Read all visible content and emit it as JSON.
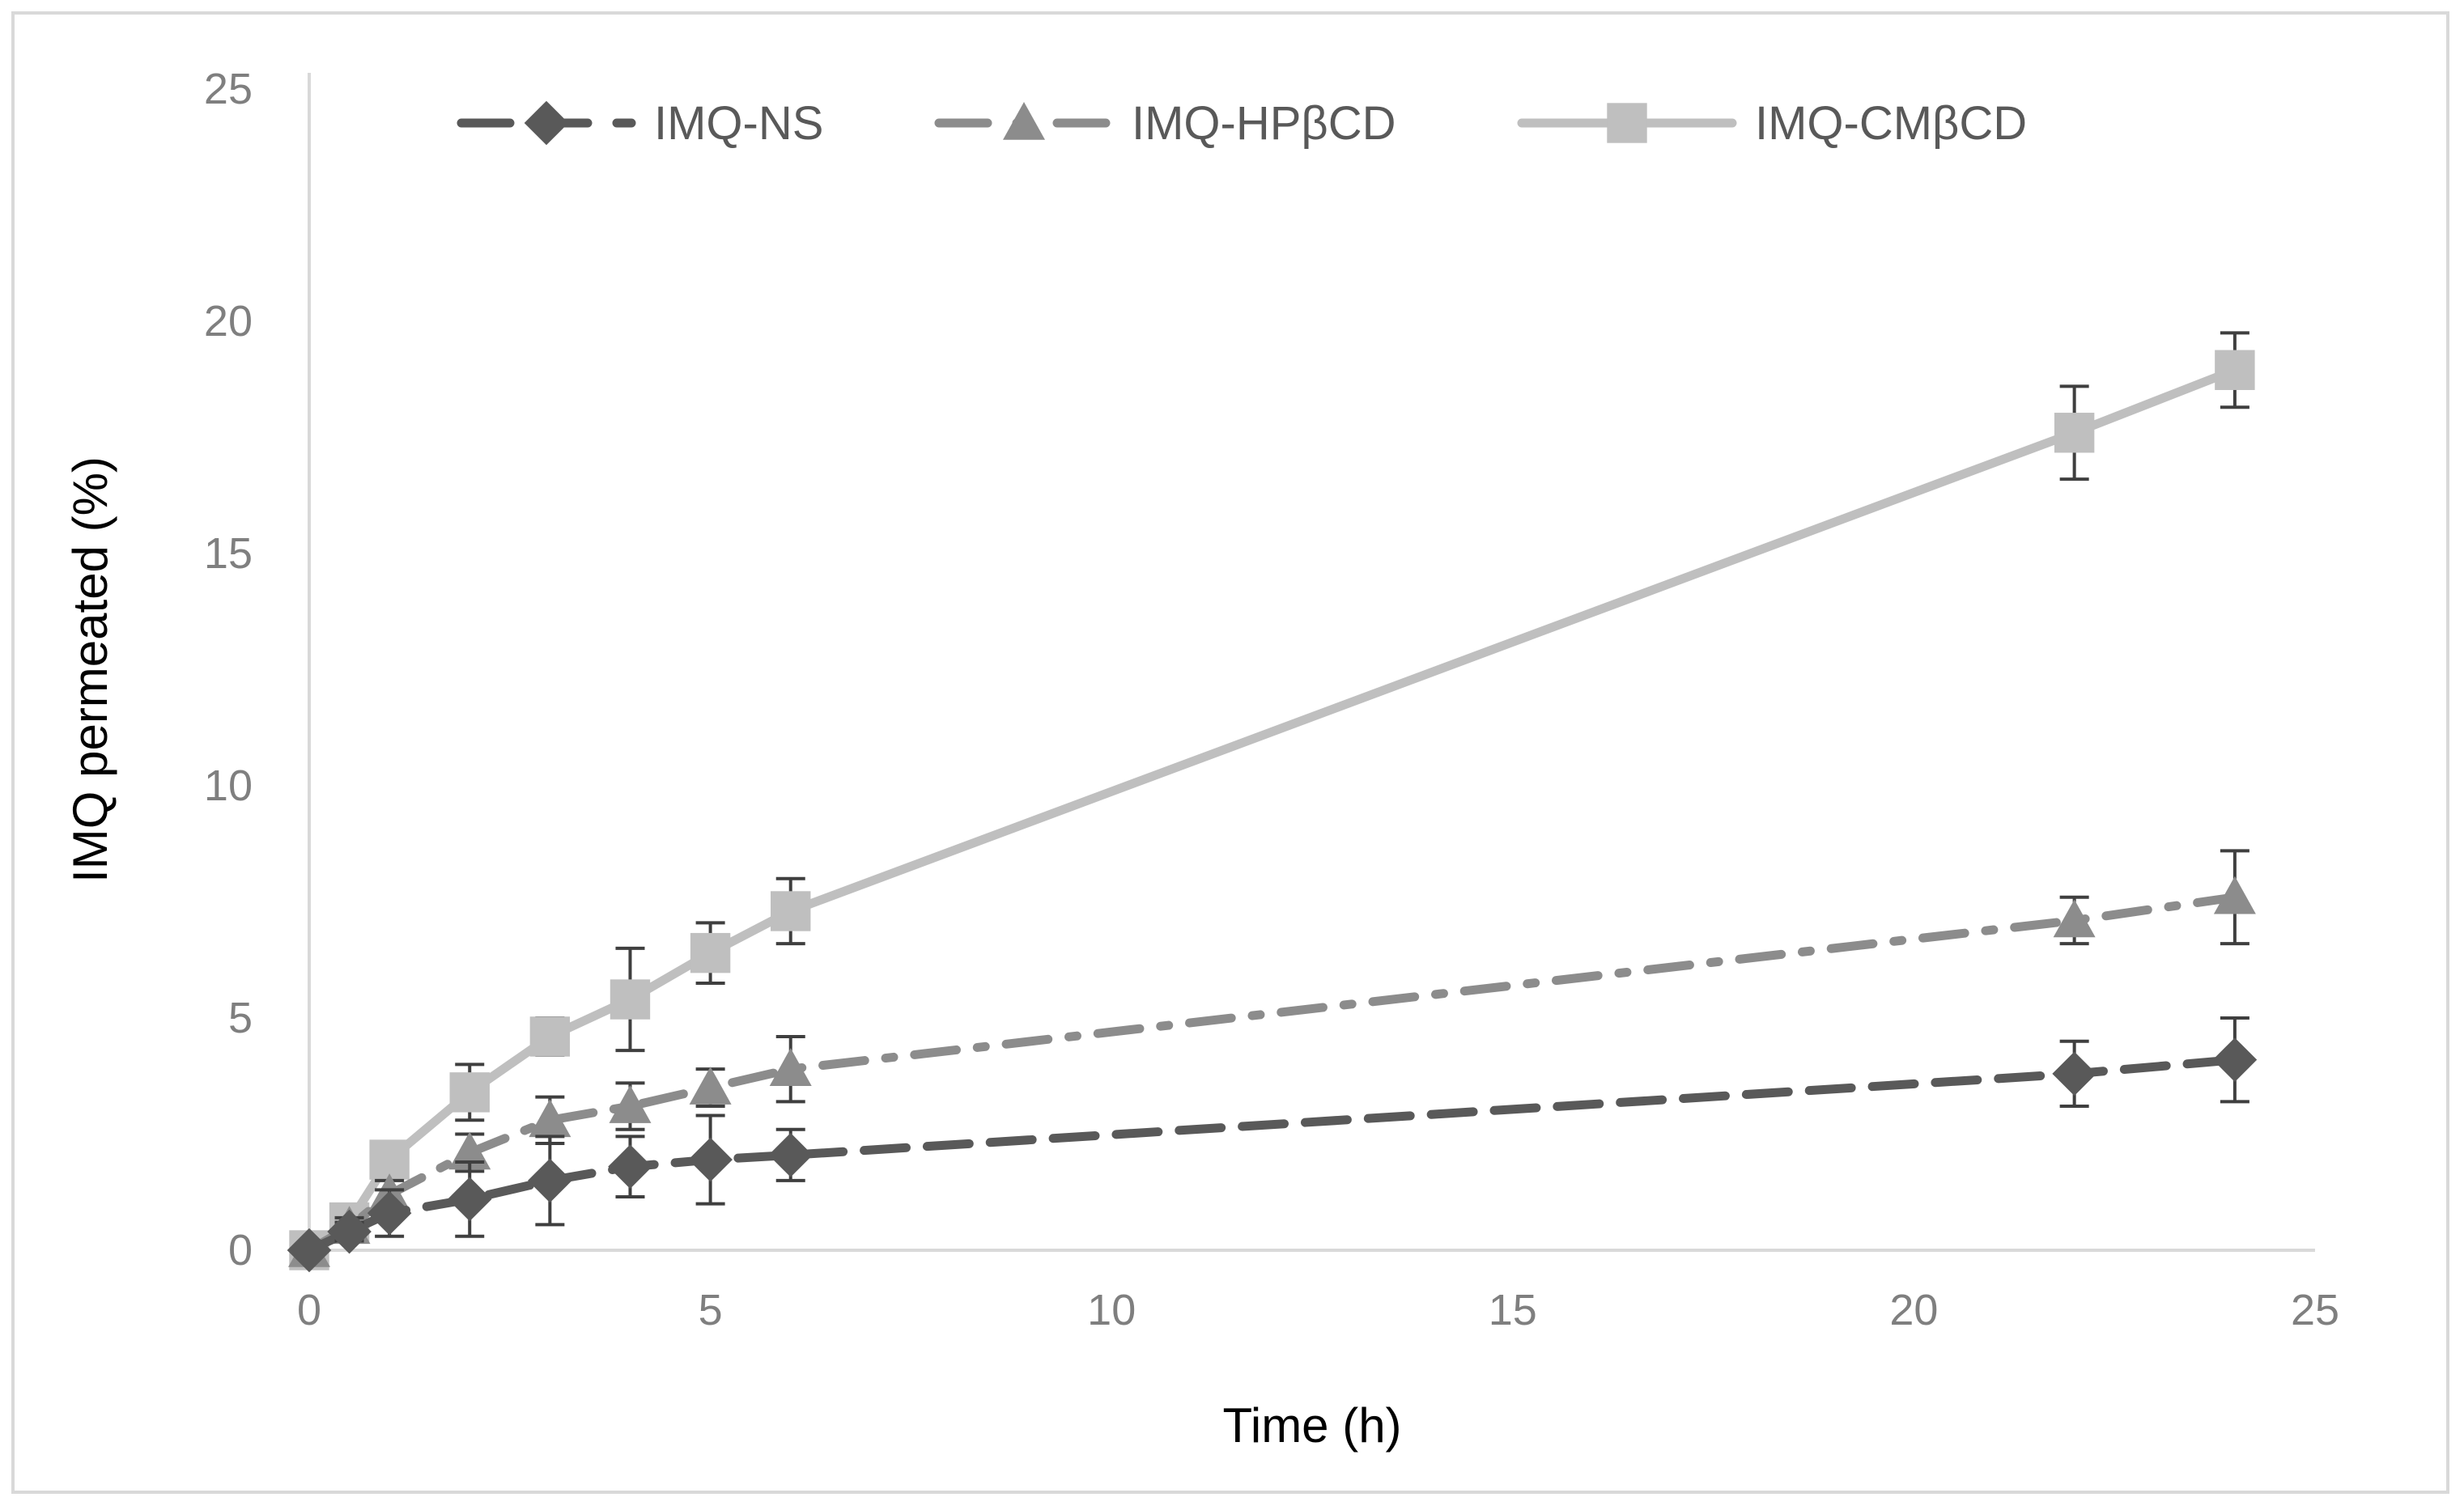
{
  "chart_data": {
    "type": "line",
    "title": "",
    "xlabel": "Time (h)",
    "ylabel": "IMQ permeated (%)",
    "xlim": [
      0,
      25
    ],
    "ylim": [
      0,
      25
    ],
    "x_ticks": [
      0,
      5,
      10,
      15,
      20,
      25
    ],
    "y_ticks": [
      0,
      5,
      10,
      15,
      20,
      25
    ],
    "x_tick_labels": [
      "0",
      "5",
      "10",
      "15",
      "20",
      "25"
    ],
    "y_tick_labels": [
      "0",
      "5",
      "10",
      "15",
      "20",
      "25"
    ],
    "grid": false,
    "legend_position": "top",
    "series": [
      {
        "name": "IMQ-NS",
        "color": "#595959",
        "marker": "diamond",
        "line_style": "dashed",
        "x": [
          0,
          0.5,
          1,
          2,
          3,
          4,
          5,
          6,
          22,
          24
        ],
        "y": [
          0,
          0.4,
          0.8,
          1.1,
          1.5,
          1.8,
          1.95,
          2.05,
          3.8,
          4.1
        ],
        "error": [
          0,
          0.2,
          0.5,
          0.8,
          0.95,
          0.65,
          0.95,
          0.55,
          0.7,
          0.9
        ]
      },
      {
        "name": "IMQ-HPβCD",
        "color": "#8c8c8c",
        "marker": "triangle",
        "line_style": "dash-dot",
        "x": [
          0,
          0.5,
          1,
          2,
          3,
          4,
          5,
          6,
          22,
          24
        ],
        "y": [
          0,
          0.5,
          1.2,
          2.1,
          2.8,
          3.1,
          3.5,
          3.9,
          7.1,
          7.6
        ],
        "error": [
          0,
          0.2,
          0.3,
          0.4,
          0.5,
          0.5,
          0.4,
          0.7,
          0.5,
          1.0
        ]
      },
      {
        "name": "IMQ-CMβCD",
        "color": "#bfbfbf",
        "marker": "square",
        "line_style": "solid",
        "x": [
          0,
          0.5,
          1,
          2,
          3,
          4,
          5,
          6,
          22,
          24
        ],
        "y": [
          0,
          0.6,
          1.95,
          3.4,
          4.6,
          5.4,
          6.4,
          7.3,
          17.6,
          18.95
        ],
        "error": [
          0,
          0.2,
          0.3,
          0.6,
          0.4,
          1.1,
          0.65,
          0.7,
          1.0,
          0.8
        ]
      }
    ]
  }
}
